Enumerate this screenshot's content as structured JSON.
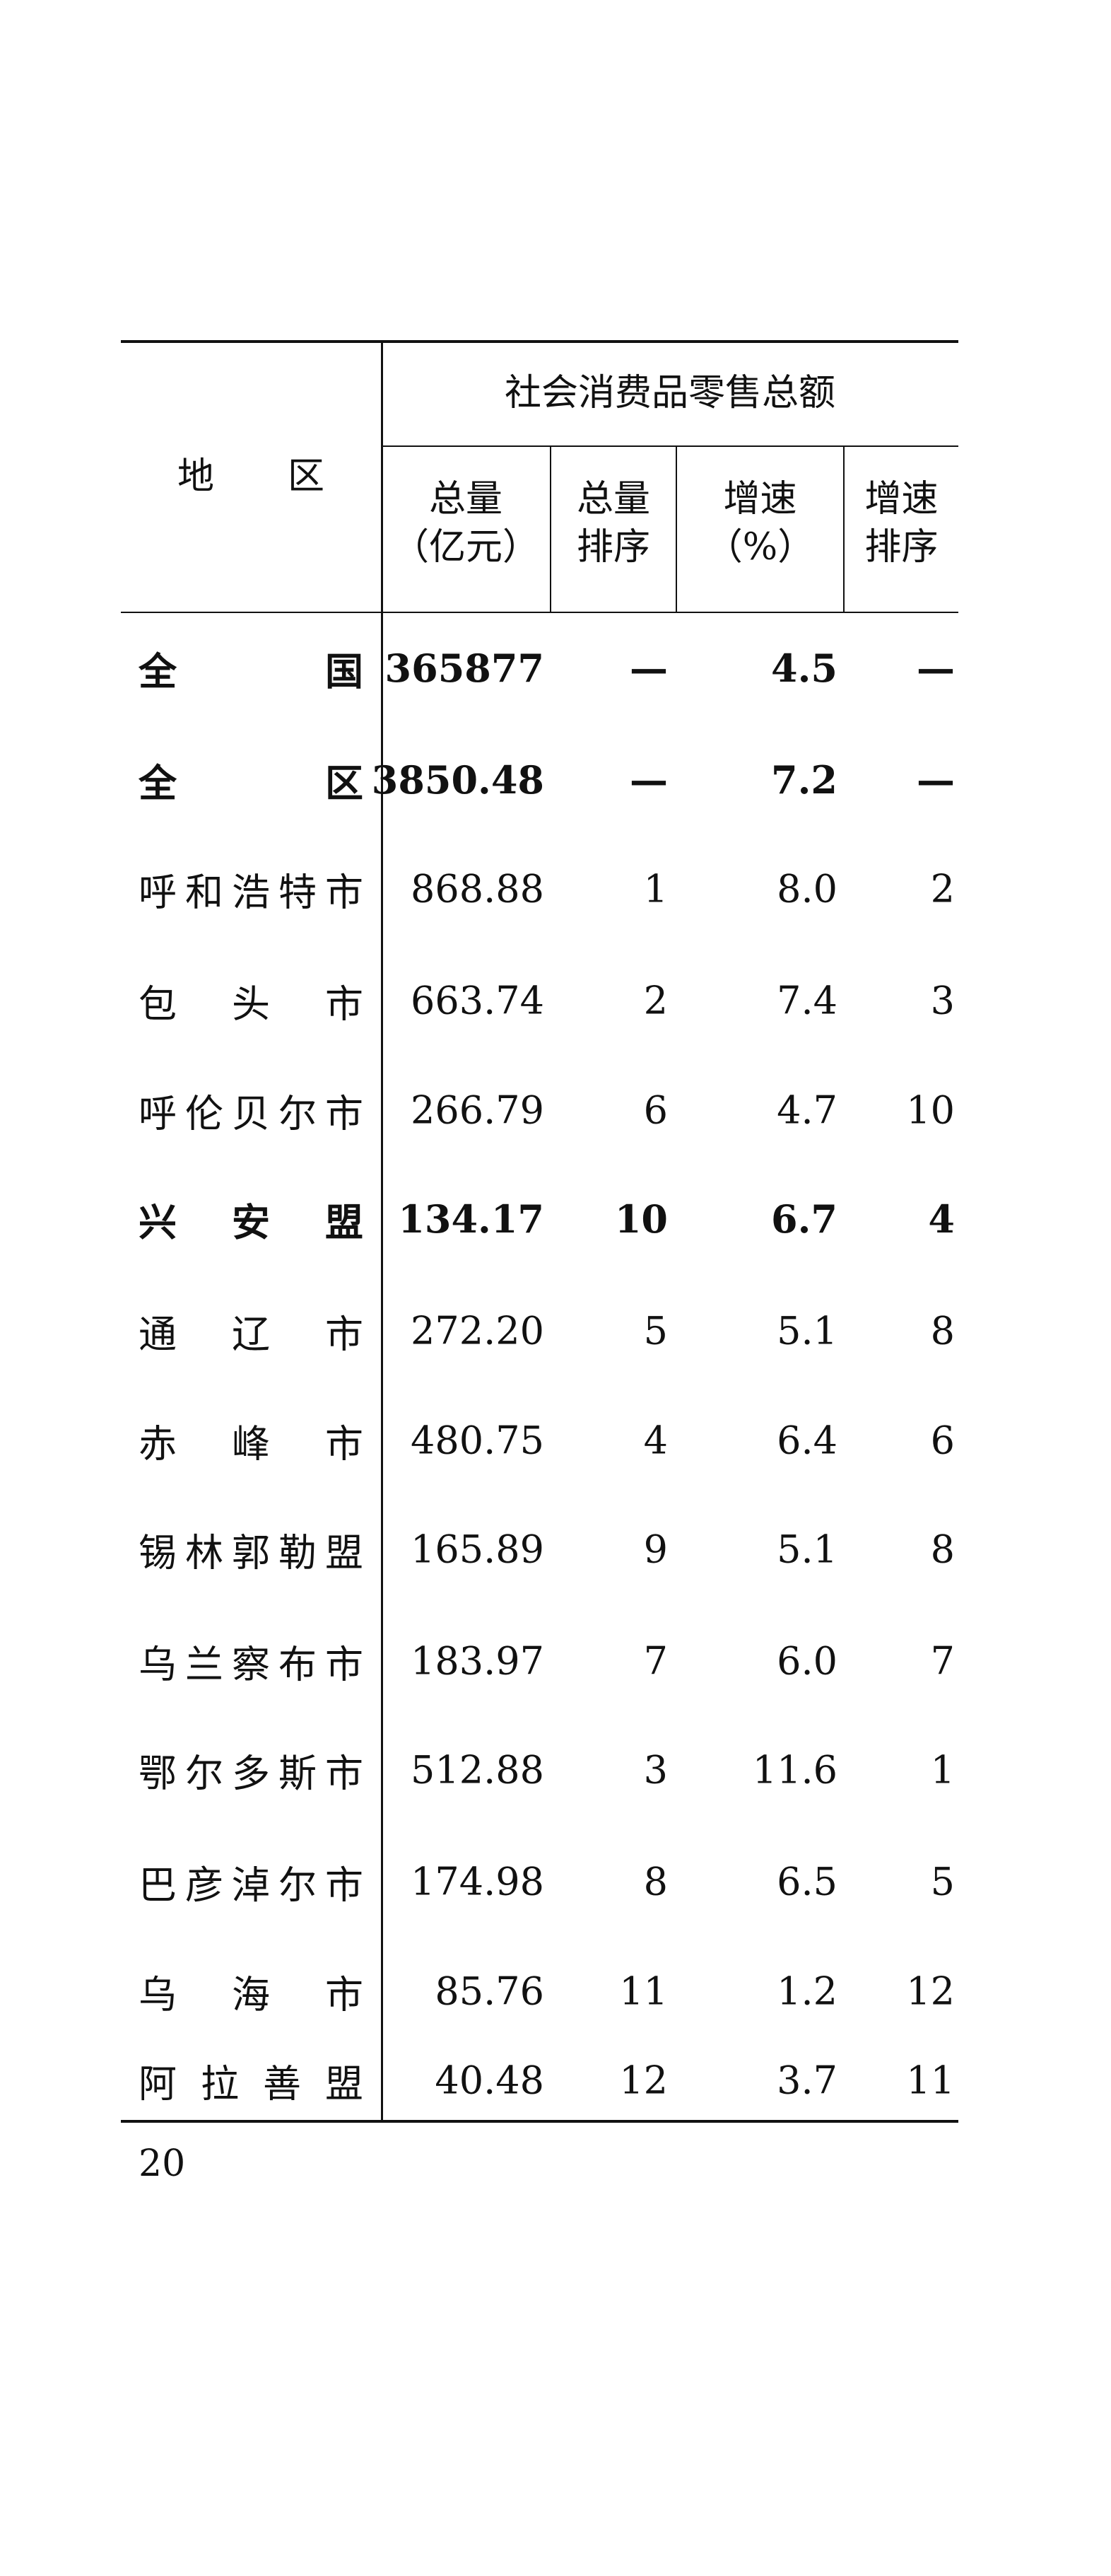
{
  "table": {
    "region_header": "地　　区",
    "group_header": "社会消费品零售总额",
    "columns": [
      {
        "line1": "总量",
        "line2": "（亿元）"
      },
      {
        "line1": "总量",
        "line2": "排序"
      },
      {
        "line1": "增速",
        "line2": "（%）"
      },
      {
        "line1": "增速",
        "line2": "排序"
      }
    ],
    "rows": [
      {
        "region": "全国",
        "total": "365877",
        "total_rank": "—",
        "growth": "4.5",
        "growth_rank": "—",
        "bold": true
      },
      {
        "region": "全区",
        "total": "3850.48",
        "total_rank": "—",
        "growth": "7.2",
        "growth_rank": "—",
        "bold": true
      },
      {
        "region": "呼和浩特市",
        "total": "868.88",
        "total_rank": "1",
        "growth": "8.0",
        "growth_rank": "2",
        "bold": false
      },
      {
        "region": "包头市",
        "total": "663.74",
        "total_rank": "2",
        "growth": "7.4",
        "growth_rank": "3",
        "bold": false
      },
      {
        "region": "呼伦贝尔市",
        "total": "266.79",
        "total_rank": "6",
        "growth": "4.7",
        "growth_rank": "10",
        "bold": false
      },
      {
        "region": "兴安盟",
        "total": "134.17",
        "total_rank": "10",
        "growth": "6.7",
        "growth_rank": "4",
        "bold": true
      },
      {
        "region": "通辽市",
        "total": "272.20",
        "total_rank": "5",
        "growth": "5.1",
        "growth_rank": "8",
        "bold": false
      },
      {
        "region": "赤峰市",
        "total": "480.75",
        "total_rank": "4",
        "growth": "6.4",
        "growth_rank": "6",
        "bold": false
      },
      {
        "region": "锡林郭勒盟",
        "total": "165.89",
        "total_rank": "9",
        "growth": "5.1",
        "growth_rank": "8",
        "bold": false
      },
      {
        "region": "乌兰察布市",
        "total": "183.97",
        "total_rank": "7",
        "growth": "6.0",
        "growth_rank": "7",
        "bold": false
      },
      {
        "region": "鄂尔多斯市",
        "total": "512.88",
        "total_rank": "3",
        "growth": "11.6",
        "growth_rank": "1",
        "bold": false
      },
      {
        "region": "巴彦淖尔市",
        "total": "174.98",
        "total_rank": "8",
        "growth": "6.5",
        "growth_rank": "5",
        "bold": false
      },
      {
        "region": "乌海市",
        "total": "85.76",
        "total_rank": "11",
        "growth": "1.2",
        "growth_rank": "12",
        "bold": false
      },
      {
        "region": "阿拉善盟",
        "total": "40.48",
        "total_rank": "12",
        "growth": "3.7",
        "growth_rank": "11",
        "bold": false
      }
    ]
  },
  "page_number": "20"
}
